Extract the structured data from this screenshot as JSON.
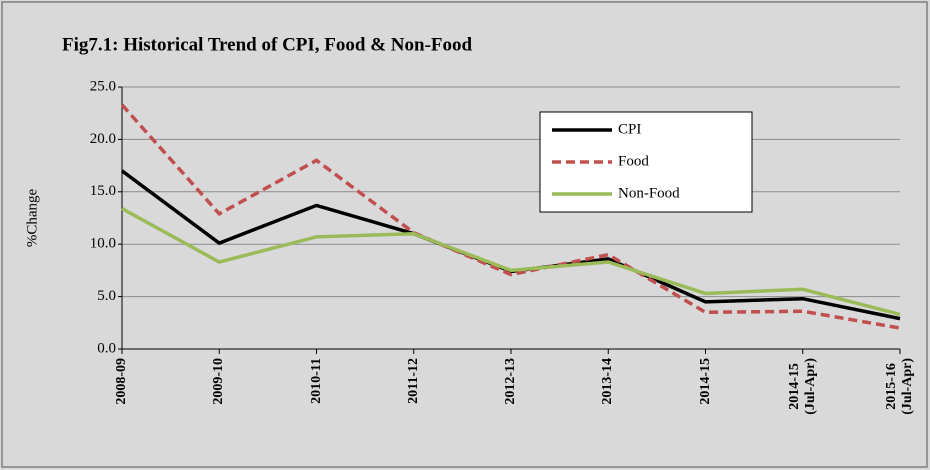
{
  "chart_data": {
    "type": "line",
    "title": "Fig7.1: Historical Trend of CPI, Food & Non-Food",
    "y_label": "%Change",
    "categories": [
      "2008-09",
      "2009-10",
      "2010-11",
      "2011-12",
      "2012-13",
      "2013-14",
      "2014-15",
      "2014-15\n(Jul-Apr)",
      "2015-16\n(Jul-Apr)"
    ],
    "series": [
      {
        "name": "CPI",
        "color": "#000000",
        "dash": "solid",
        "values": [
          17.0,
          10.1,
          13.7,
          11.0,
          7.4,
          8.6,
          4.5,
          4.8,
          2.9
        ]
      },
      {
        "name": "Food",
        "color": "#c0504d",
        "dash": "dashed",
        "values": [
          23.3,
          12.9,
          18.0,
          11.1,
          7.1,
          9.0,
          3.5,
          3.6,
          2.0
        ]
      },
      {
        "name": "Non-Food",
        "color": "#9bbb59",
        "dash": "solid",
        "values": [
          13.4,
          8.3,
          10.7,
          11.0,
          7.5,
          8.3,
          5.3,
          5.7,
          3.3
        ]
      }
    ],
    "ylim": [
      0,
      25
    ],
    "yticks": [
      {
        "value": 0,
        "label": "0.0"
      },
      {
        "value": 5,
        "label": "5.0"
      },
      {
        "value": 10,
        "label": "10.0"
      },
      {
        "value": 15,
        "label": "15.0"
      },
      {
        "value": 20,
        "label": "20.0"
      },
      {
        "value": 25,
        "label": "25.0"
      }
    ],
    "grid": true
  }
}
